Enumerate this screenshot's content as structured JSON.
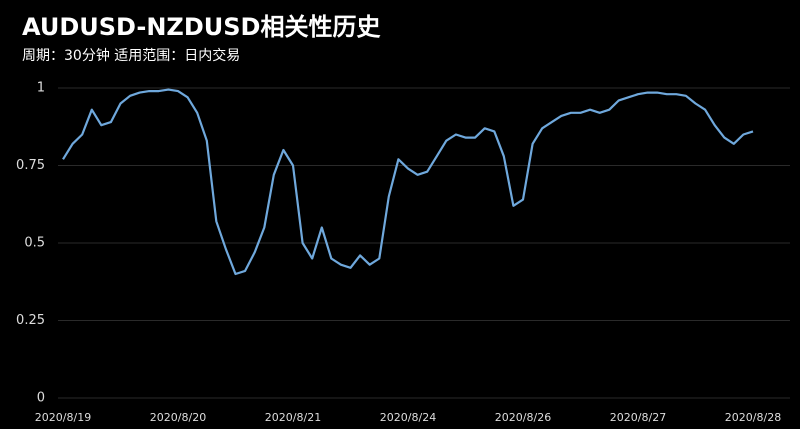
{
  "chart_data": {
    "type": "line",
    "title": "AUDUSD-NZDUSD相关性历史",
    "subtitle": "周期：30分钟 适用范围：日内交易",
    "categories": [
      "2020/8/19",
      null,
      null,
      null,
      null,
      null,
      null,
      null,
      null,
      null,
      null,
      null,
      "2020/8/20",
      null,
      null,
      null,
      null,
      null,
      null,
      null,
      null,
      null,
      null,
      null,
      "2020/8/21",
      null,
      null,
      null,
      null,
      null,
      null,
      null,
      null,
      null,
      null,
      null,
      "2020/8/24",
      null,
      null,
      null,
      null,
      null,
      null,
      null,
      null,
      null,
      null,
      null,
      "2020/8/26",
      null,
      null,
      null,
      null,
      null,
      null,
      null,
      null,
      null,
      null,
      null,
      "2020/8/27",
      null,
      null,
      null,
      null,
      null,
      null,
      null,
      null,
      null,
      null,
      null,
      "2020/8/28"
    ],
    "values": [
      0.77,
      0.82,
      0.85,
      0.93,
      0.88,
      0.89,
      0.95,
      0.975,
      0.985,
      0.99,
      0.99,
      0.995,
      0.99,
      0.97,
      0.92,
      0.83,
      0.57,
      0.48,
      0.4,
      0.41,
      0.47,
      0.55,
      0.72,
      0.8,
      0.75,
      0.5,
      0.45,
      0.55,
      0.45,
      0.43,
      0.42,
      0.46,
      0.43,
      0.45,
      0.65,
      0.77,
      0.74,
      0.72,
      0.73,
      0.78,
      0.83,
      0.85,
      0.84,
      0.84,
      0.87,
      0.86,
      0.78,
      0.62,
      0.64,
      0.82,
      0.87,
      0.89,
      0.91,
      0.92,
      0.92,
      0.93,
      0.92,
      0.93,
      0.96,
      0.97,
      0.98,
      0.985,
      0.985,
      0.98,
      0.98,
      0.975,
      0.95,
      0.93,
      0.88,
      0.84,
      0.82,
      0.85,
      0.86
    ],
    "color": "#6fa8dc",
    "ylim": [
      0,
      1
    ],
    "yticks": [
      0,
      0.25,
      0.5,
      0.75,
      1
    ],
    "grid": true
  }
}
